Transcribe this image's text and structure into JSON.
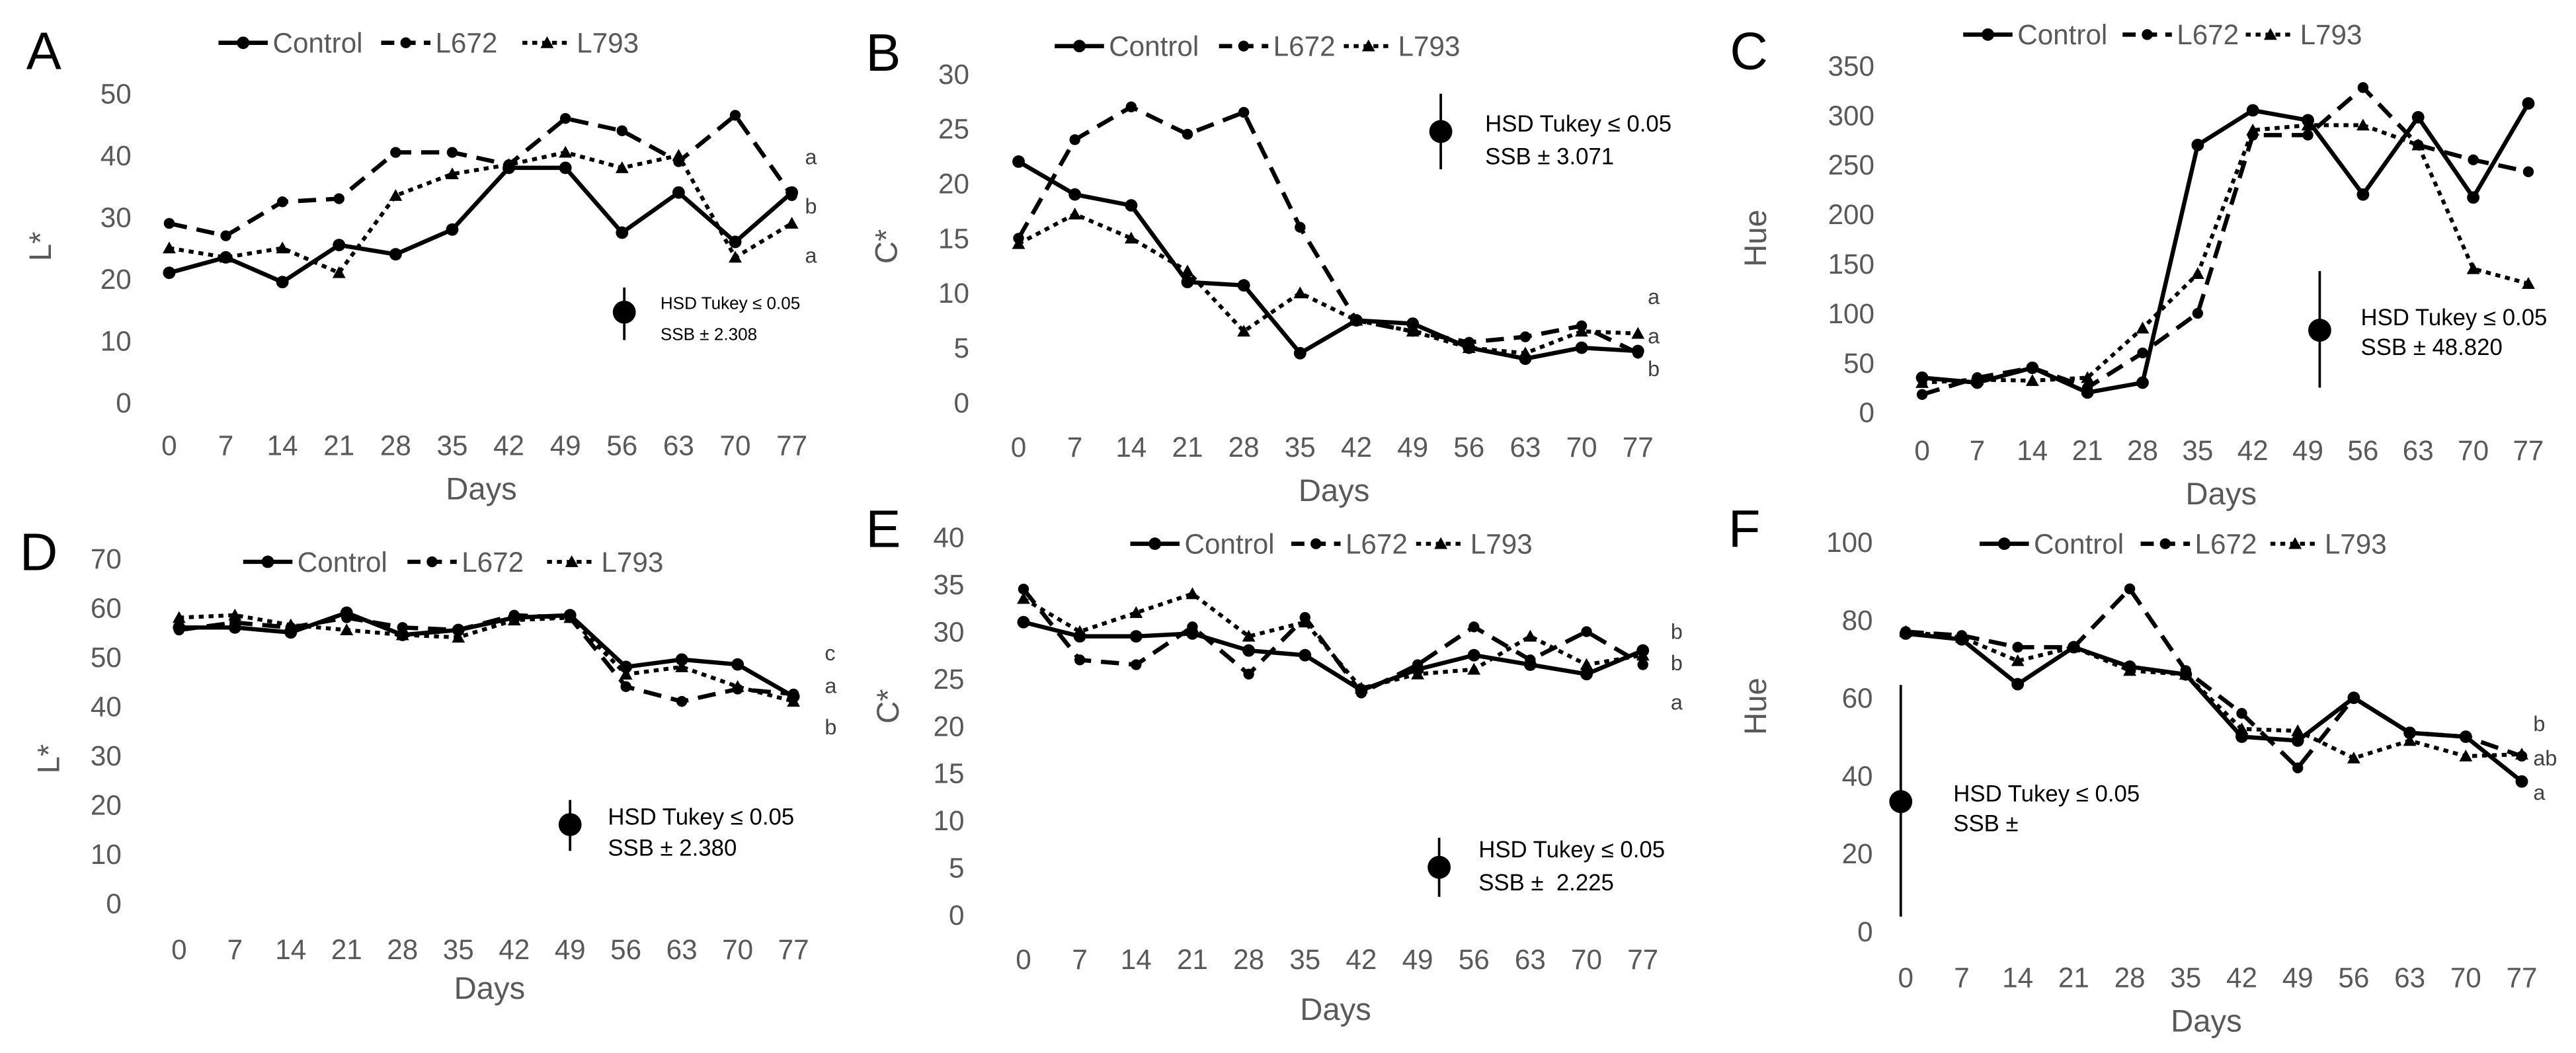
{
  "chart_data": [
    {
      "panel": "A",
      "type": "line",
      "xlabel": "Days",
      "ylabel": "L*",
      "categories": [
        0,
        7,
        14,
        21,
        28,
        35,
        42,
        49,
        56,
        63,
        70,
        77
      ],
      "ylim": [
        0,
        50
      ],
      "yticks": [
        0,
        10,
        20,
        30,
        40,
        50
      ],
      "legend": "top",
      "series": [
        {
          "name": "Control",
          "values": [
            21,
            23.5,
            19.5,
            25.5,
            24,
            28,
            38,
            38,
            27.5,
            34,
            26,
            34
          ]
        },
        {
          "name": "L672",
          "values": [
            29,
            27,
            32.5,
            33,
            40.5,
            40.5,
            38.5,
            46,
            44,
            39,
            46.5,
            33.5
          ]
        },
        {
          "name": "L793",
          "values": [
            25,
            23.5,
            25,
            21,
            33.5,
            37,
            38.5,
            40.5,
            38,
            40,
            23.5,
            29
          ]
        }
      ],
      "annotation": [
        "HSD Tukey ≤ 0.05",
        "SSB ± 2.308"
      ],
      "letters": [
        "a",
        "b",
        "a"
      ]
    },
    {
      "panel": "B",
      "type": "line",
      "xlabel": "Days",
      "ylabel": "C*",
      "categories": [
        0,
        7,
        14,
        21,
        28,
        35,
        42,
        49,
        56,
        63,
        70,
        77
      ],
      "ylim": [
        0,
        30
      ],
      "yticks": [
        0,
        5,
        10,
        15,
        20,
        25,
        30
      ],
      "legend": "top",
      "series": [
        {
          "name": "Control",
          "values": [
            22,
            19,
            18,
            11,
            10.7,
            4.5,
            7.5,
            7.2,
            5,
            4,
            5,
            4.7
          ]
        },
        {
          "name": "L672",
          "values": [
            15,
            24,
            27,
            24.5,
            26.5,
            16,
            7.5,
            6.5,
            5.5,
            6,
            7,
            4.5
          ]
        },
        {
          "name": "L793",
          "values": [
            14.5,
            17.2,
            15,
            12,
            6.5,
            10,
            7.5,
            6.5,
            5,
            4.5,
            6.5,
            6.3
          ]
        }
      ],
      "annotation": [
        "HSD Tukey ≤ 0.05",
        "SSB ± 3.071"
      ],
      "letters": [
        "a",
        "a",
        "b"
      ]
    },
    {
      "panel": "C",
      "type": "line",
      "xlabel": "Days",
      "ylabel": "Hue",
      "categories": [
        0,
        7,
        14,
        21,
        28,
        35,
        42,
        49,
        56,
        63,
        70,
        77
      ],
      "ylim": [
        0,
        350
      ],
      "yticks": [
        0,
        50,
        100,
        150,
        200,
        250,
        300,
        350
      ],
      "legend": "top",
      "series": [
        {
          "name": "Control",
          "values": [
            35,
            30,
            45,
            20,
            30,
            270,
            305,
            295,
            220,
            298,
            217,
            312
          ]
        },
        {
          "name": "L672",
          "values": [
            18,
            35,
            45,
            25,
            60,
            100,
            280,
            280,
            328,
            270,
            255,
            243
          ]
        },
        {
          "name": "L793",
          "values": [
            30,
            33,
            32,
            35,
            85,
            140,
            285,
            290,
            290,
            270,
            145,
            130
          ]
        }
      ],
      "annotation": [
        "HSD Tukey ≤ 0.05",
        "SSB ± 48.820"
      ],
      "letters": []
    },
    {
      "panel": "D",
      "type": "line",
      "xlabel": "Days",
      "ylabel": "L*",
      "categories": [
        0,
        7,
        14,
        21,
        28,
        35,
        42,
        49,
        56,
        63,
        70,
        77
      ],
      "ylim": [
        0,
        70
      ],
      "yticks": [
        0,
        10,
        20,
        30,
        40,
        50,
        60,
        70
      ],
      "legend": "top",
      "series": [
        {
          "name": "Control",
          "values": [
            56,
            56,
            55,
            59,
            54.5,
            55.5,
            58,
            58.5,
            48,
            49.5,
            48.5,
            42
          ]
        },
        {
          "name": "L672",
          "values": [
            55.5,
            57,
            56,
            58,
            56,
            55.5,
            58.5,
            58,
            44,
            41,
            43.5,
            42.5
          ]
        },
        {
          "name": "L793",
          "values": [
            58,
            58.5,
            56.5,
            55.5,
            54.5,
            54,
            57.5,
            58,
            46.5,
            48,
            44,
            41
          ]
        }
      ],
      "annotation": [
        "HSD Tukey ≤ 0.05",
        "SSB ± 2.380"
      ],
      "letters": [
        "c",
        "a",
        "b"
      ]
    },
    {
      "panel": "E",
      "type": "line",
      "xlabel": "Days",
      "ylabel": "C*",
      "categories": [
        0,
        7,
        14,
        21,
        28,
        35,
        42,
        49,
        56,
        63,
        70,
        77
      ],
      "ylim": [
        0,
        40
      ],
      "yticks": [
        0,
        5,
        10,
        15,
        20,
        25,
        30,
        35,
        40
      ],
      "legend": "top",
      "series": [
        {
          "name": "Control",
          "values": [
            31,
            29.5,
            29.5,
            29.8,
            28,
            27.5,
            23.8,
            26,
            27.5,
            26.5,
            25.5,
            28
          ]
        },
        {
          "name": "L672",
          "values": [
            34.5,
            27,
            26.5,
            30.5,
            25.5,
            31.5,
            23.5,
            26.5,
            30.5,
            27,
            30,
            26.5
          ]
        },
        {
          "name": "L793",
          "values": [
            33.5,
            30,
            32,
            34,
            29.5,
            31,
            24,
            25.5,
            26,
            29.5,
            26.5,
            27.5
          ]
        }
      ],
      "annotation": [
        "HSD Tukey ≤ 0.05",
        "SSB ±  2.225"
      ],
      "letters": [
        "b",
        "b",
        "a"
      ]
    },
    {
      "panel": "F",
      "type": "line",
      "xlabel": "Days",
      "ylabel": "Hue",
      "categories": [
        0,
        7,
        14,
        21,
        28,
        35,
        42,
        49,
        56,
        63,
        70,
        77
      ],
      "ylim": [
        0,
        100
      ],
      "yticks": [
        0,
        20,
        40,
        60,
        80,
        100
      ],
      "legend": "top",
      "series": [
        {
          "name": "Control",
          "values": [
            76.5,
            75,
            63.5,
            73,
            68,
            66,
            50,
            49,
            60,
            51,
            50,
            38.5
          ]
        },
        {
          "name": "L672",
          "values": [
            77,
            76,
            73,
            73,
            88,
            67,
            56,
            42,
            60,
            51,
            50,
            45
          ]
        },
        {
          "name": "L793",
          "values": [
            77,
            75.5,
            69.5,
            73,
            67,
            66,
            52,
            51.5,
            44.5,
            49,
            45,
            45.5
          ]
        }
      ],
      "annotation": [
        "HSD Tukey ≤ 0.05",
        "SSB ±"
      ],
      "letters": [
        "b",
        "ab",
        "a"
      ]
    }
  ]
}
